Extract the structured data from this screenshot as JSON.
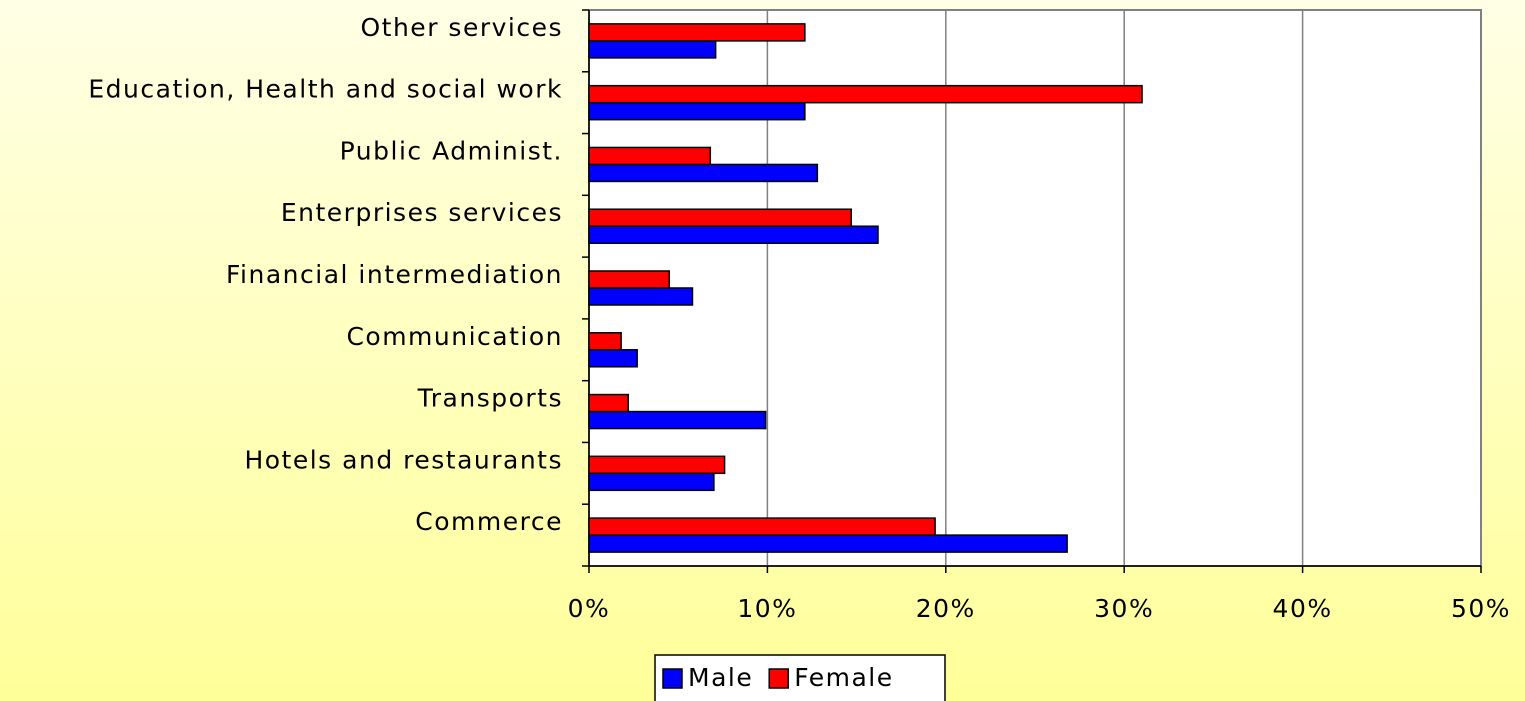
{
  "chart_data": {
    "type": "bar",
    "orientation": "horizontal",
    "categories": [
      "Commerce",
      "Hotels and restaurants",
      "Transports",
      "Communication",
      "Financial intermediation",
      "Enterprises services",
      "Public Administ.",
      "Education, Health and social work",
      "Other services"
    ],
    "series": [
      {
        "name": "Male",
        "color": "#0000ff",
        "values": [
          26.8,
          7.0,
          9.9,
          2.7,
          5.8,
          16.2,
          12.8,
          12.1,
          7.1
        ]
      },
      {
        "name": "Female",
        "color": "#ff0000",
        "values": [
          19.4,
          7.6,
          2.2,
          1.8,
          4.5,
          14.7,
          6.8,
          31.0,
          12.1
        ]
      }
    ],
    "xlim": [
      0,
      50
    ],
    "xticks": [
      {
        "value": 0,
        "label": "0%"
      },
      {
        "value": 10,
        "label": "10%"
      },
      {
        "value": 20,
        "label": "20%"
      },
      {
        "value": 30,
        "label": "30%"
      },
      {
        "value": 40,
        "label": "40%"
      },
      {
        "value": 50,
        "label": "50%"
      }
    ],
    "grid": true,
    "legend": "bottom"
  }
}
